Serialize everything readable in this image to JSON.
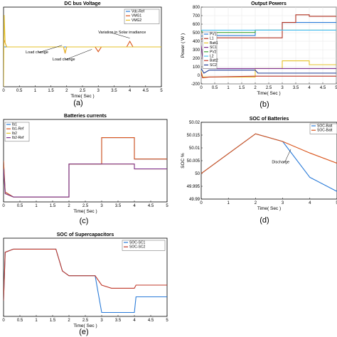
{
  "chart_data": [
    {
      "id": "a",
      "type": "line",
      "title": "DC bus Voltage",
      "xlabel": "Time( Sec )",
      "ylabel": "",
      "panel_label": "(a)",
      "xlim": [
        0,
        5
      ],
      "ylim": [
        0,
        1
      ],
      "x_ticks": [
        "0",
        "0.5",
        "1",
        "1.5",
        "2",
        "2.5",
        "3",
        "3.5",
        "4",
        "4.5",
        "5"
      ],
      "y_ticks": [],
      "legend_position": "top-right",
      "grid": false,
      "annotations": [
        {
          "text": "Variation in Solar irradiance",
          "x": 3.0,
          "y": 0.67,
          "tx": 4.0,
          "ty": 0.61
        },
        {
          "text": "Load change",
          "x": 0.7,
          "y": 0.42,
          "tx": 1.85,
          "ty": 0.52
        },
        {
          "text": "Load change",
          "x": 1.55,
          "y": 0.33,
          "tx": 2.8,
          "ty": 0.47
        }
      ],
      "series": [
        {
          "name": "Vdc-Ref",
          "color": "#2a7bd8",
          "x": [
            0,
            5
          ],
          "y": [
            0.5,
            0.5
          ]
        },
        {
          "name": "VMG1",
          "color": "#d95319",
          "x": [
            0,
            0.1,
            0.3,
            1.9,
            1.95,
            2.0,
            2.1,
            2.5,
            2.9,
            3.0,
            3.1,
            3.3,
            3.9,
            4.0,
            4.1,
            4.3,
            5
          ],
          "y": [
            0.6,
            0.5,
            0.5,
            0.5,
            0.42,
            0.5,
            0.5,
            0.5,
            0.5,
            0.44,
            0.5,
            0.5,
            0.5,
            0.57,
            0.5,
            0.5,
            0.5
          ]
        },
        {
          "name": "VMG2",
          "color": "#e6c229",
          "x": [
            0,
            0.02,
            0.05,
            0.1,
            0.3,
            1.9,
            1.95,
            2.0,
            2.1,
            5
          ],
          "y": [
            0.0,
            0.9,
            0.55,
            0.5,
            0.5,
            0.5,
            0.43,
            0.5,
            0.5,
            0.5
          ]
        }
      ]
    },
    {
      "id": "b",
      "type": "line",
      "title": "Output Powers",
      "xlabel": "Time( Sec )",
      "ylabel": "Power ( W )",
      "panel_label": "(b)",
      "xlim": [
        0,
        5
      ],
      "ylim": [
        -200,
        800
      ],
      "x_ticks": [
        "0",
        "0.5",
        "1",
        "1.5",
        "2",
        "2.5",
        "3",
        "3.5",
        "4",
        "4.5",
        "5"
      ],
      "y_ticks": [
        "-200",
        "0",
        "100",
        "200",
        "300",
        "400",
        "500",
        "600",
        "700",
        "800"
      ],
      "legend_position": "left",
      "grid": true,
      "series": [
        {
          "name": "PV1",
          "color": "#2a7bd8",
          "x": [
            0,
            0.1,
            2,
            2,
            3,
            3,
            5
          ],
          "y": [
            420,
            430,
            430,
            500,
            500,
            600,
            600
          ]
        },
        {
          "name": "L1",
          "color": "#b03020",
          "x": [
            0,
            0.1,
            3,
            3,
            3.5,
            3.5,
            4,
            4,
            5
          ],
          "y": [
            380,
            400,
            400,
            600,
            600,
            700,
            700,
            680,
            680
          ]
        },
        {
          "name": "Batt1",
          "color": "#e6c229",
          "x": [
            0,
            0.05,
            0.3,
            2,
            2,
            3,
            3,
            4,
            4,
            5
          ],
          "y": [
            -30,
            -110,
            -110,
            -110,
            0,
            0,
            100,
            100,
            50,
            50
          ]
        },
        {
          "name": "SC1",
          "color": "#7e2f8e",
          "x": [
            0,
            0.1,
            0.4,
            2,
            2.2,
            3,
            3,
            3.3,
            4,
            4.2,
            5
          ],
          "y": [
            300,
            0,
            0,
            0,
            0,
            0,
            0,
            0,
            0,
            0,
            0
          ]
        },
        {
          "name": "PV2",
          "color": "#3fa535",
          "x": [
            0,
            0.05,
            2,
            2,
            5
          ],
          "y": [
            500,
            470,
            470,
            500,
            500
          ]
        },
        {
          "name": "L2",
          "color": "#4dbeee",
          "x": [
            0,
            5
          ],
          "y": [
            500,
            500
          ]
        },
        {
          "name": "Batt2",
          "color": "#c0392b",
          "x": [
            0,
            0.05,
            0.3,
            2,
            2,
            5
          ],
          "y": [
            -50,
            -120,
            -110,
            -100,
            -100,
            -100
          ]
        },
        {
          "name": "SC2",
          "color": "#1f3a93",
          "x": [
            0,
            0.1,
            0.3,
            2,
            2.1,
            2.3,
            5
          ],
          "y": [
            0,
            -60,
            -20,
            -20,
            -60,
            -60,
            -60
          ]
        }
      ]
    },
    {
      "id": "c",
      "type": "line",
      "title": "Batteries currents",
      "xlabel": "Time( Sec )",
      "ylabel": "",
      "panel_label": "(c)",
      "xlim": [
        0,
        5
      ],
      "ylim": [
        0,
        1
      ],
      "x_ticks": [
        "0",
        "0.5",
        "1",
        "1.5",
        "2",
        "2.5",
        "3",
        "3.5",
        "4",
        "4.5",
        "5"
      ],
      "y_ticks": [],
      "legend_position": "top-left",
      "grid": false,
      "series": [
        {
          "name": "Ib1",
          "color": "#2a7bd8",
          "x": [
            0,
            0.05,
            0.3,
            2,
            2,
            3,
            3,
            4,
            4,
            5
          ],
          "y": [
            0.5,
            0.12,
            0.06,
            0.06,
            0.46,
            0.46,
            0.78,
            0.78,
            0.52,
            0.52
          ]
        },
        {
          "name": "Ib1-Ref",
          "color": "#d95319",
          "x": [
            0,
            0.05,
            0.3,
            2,
            2,
            3,
            3,
            4,
            4,
            5
          ],
          "y": [
            0.5,
            0.12,
            0.06,
            0.06,
            0.46,
            0.46,
            0.78,
            0.78,
            0.52,
            0.52
          ]
        },
        {
          "name": "Ib2",
          "color": "#e6c229",
          "x": [
            0,
            0.05,
            0.3,
            2,
            2,
            4,
            4,
            5
          ],
          "y": [
            0.4,
            0.1,
            0.06,
            0.06,
            0.46,
            0.46,
            0.4,
            0.4
          ]
        },
        {
          "name": "Ib2-Ref",
          "color": "#7e2f8e",
          "x": [
            0,
            0.05,
            0.3,
            2,
            2,
            4,
            4,
            5
          ],
          "y": [
            0.4,
            0.1,
            0.06,
            0.06,
            0.46,
            0.46,
            0.4,
            0.4
          ]
        }
      ]
    },
    {
      "id": "d",
      "type": "line",
      "title": "SOC of Batteries",
      "xlabel": "Time( Sec )",
      "ylabel": "SOC %",
      "panel_label": "(d)",
      "xlim": [
        0,
        5
      ],
      "ylim": [
        49.99,
        50.02
      ],
      "x_ticks": [
        "0",
        "1",
        "2",
        "3",
        "4",
        "5"
      ],
      "y_ticks": [
        "49.99",
        "49.995",
        "50",
        "50.005",
        "50.01",
        "50.015",
        "50.02"
      ],
      "legend_position": "top-right",
      "grid": false,
      "annotations": [
        {
          "text": "Discharge",
          "x": 2.6,
          "y": 50.004,
          "tx": 3.3,
          "ty": 50.0095
        }
      ],
      "series": [
        {
          "name": "SOC-Batt",
          "color": "#2a7bd8",
          "x": [
            0,
            2,
            3,
            4,
            5
          ],
          "y": [
            50.0,
            50.0155,
            50.0125,
            49.9985,
            49.993
          ]
        },
        {
          "name": "SOC-Batt",
          "color": "#d95319",
          "x": [
            0,
            2,
            3,
            4,
            5
          ],
          "y": [
            50.0,
            50.0155,
            50.0125,
            50.008,
            50.004
          ]
        }
      ]
    },
    {
      "id": "e",
      "type": "line",
      "title": "SOC of Supercapacitors",
      "xlabel": "Time( Sec )",
      "ylabel": "",
      "panel_label": "(e)",
      "xlim": [
        0,
        5
      ],
      "ylim": [
        0,
        1
      ],
      "x_ticks": [
        "0",
        "0.5",
        "1",
        "1.5",
        "2",
        "2.5",
        "3",
        "3.5",
        "4",
        "4.5",
        "5"
      ],
      "y_ticks": [],
      "legend_position": "top-right",
      "grid": false,
      "series": [
        {
          "name": "SOC-SC1",
          "color": "#2a7bd8",
          "x": [
            0,
            0.05,
            0.3,
            1.6,
            1.8,
            2,
            2.5,
            2.8,
            3,
            3.3,
            4,
            4.05,
            4.3,
            5
          ],
          "y": [
            0.2,
            0.82,
            0.86,
            0.86,
            0.58,
            0.52,
            0.52,
            0.52,
            0.05,
            0.05,
            0.05,
            0.25,
            0.25,
            0.25
          ]
        },
        {
          "name": "SOC-SC2",
          "color": "#c0392b",
          "x": [
            0,
            0.05,
            0.3,
            1.6,
            1.8,
            2,
            2.5,
            2.8,
            3,
            3.3,
            4,
            4.05,
            4.3,
            5
          ],
          "y": [
            0.2,
            0.82,
            0.86,
            0.86,
            0.58,
            0.52,
            0.52,
            0.52,
            0.4,
            0.36,
            0.36,
            0.4,
            0.4,
            0.4
          ]
        }
      ]
    }
  ]
}
